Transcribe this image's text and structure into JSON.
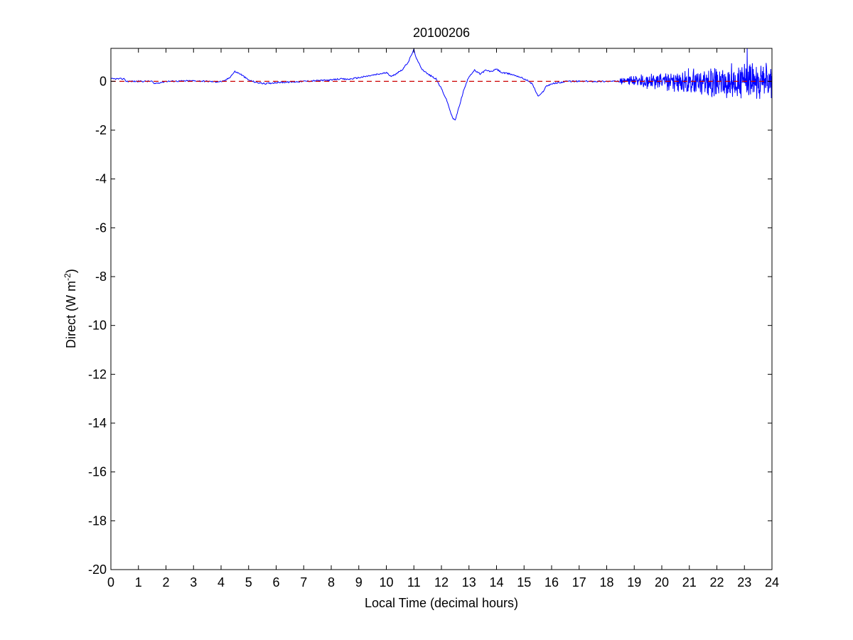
{
  "chart_data": {
    "type": "line",
    "title": "20100206",
    "xlabel": "Local Time (decimal hours)",
    "ylabel": {
      "text": "Direct (W m",
      "superscript": "-2",
      "suffix": ")"
    },
    "xlim": [
      0,
      24
    ],
    "ylim": [
      -20,
      1.35
    ],
    "xticks": [
      0,
      1,
      2,
      3,
      4,
      5,
      6,
      7,
      8,
      9,
      10,
      11,
      12,
      13,
      14,
      15,
      16,
      17,
      18,
      19,
      20,
      21,
      22,
      23,
      24
    ],
    "yticks": [
      0,
      -2,
      -4,
      -6,
      -8,
      -10,
      -12,
      -14,
      -16,
      -18,
      -20
    ],
    "grid": false,
    "colors": {
      "series": "#0000ff",
      "reference": "#cc0000",
      "axes": "#000000"
    },
    "reference_line": {
      "y": 0,
      "style": "dashed"
    },
    "series": [
      {
        "x": [
          0,
          0.5,
          0.55,
          1,
          1.5,
          1.55,
          2,
          3,
          3.5,
          3.8,
          4.1,
          4.3,
          4.5,
          4.7,
          5,
          5.3,
          5.6,
          6,
          6.5,
          7,
          7.5,
          8,
          8.3,
          8.6,
          9,
          9.5,
          10,
          10.2,
          10.4,
          10.6,
          10.8,
          11,
          11.1,
          11.3,
          11.5,
          11.8,
          12,
          12.2,
          12.4,
          12.5,
          12.6,
          12.8,
          13,
          13.2,
          13.4,
          13.6,
          13.8,
          14,
          14.2,
          14.5,
          14.8,
          15.1,
          15.3,
          15.4,
          15.5,
          15.6,
          15.7,
          15.8,
          16,
          16.3,
          16.6,
          17,
          17.5,
          18,
          18.5
        ],
        "y": [
          0.1,
          0.1,
          0,
          0,
          0,
          -0.1,
          0,
          0.02,
          0,
          -0.02,
          0,
          0.15,
          0.4,
          0.3,
          0.05,
          -0.05,
          -0.1,
          -0.05,
          -0.03,
          0,
          0.03,
          0.05,
          0.1,
          0.08,
          0.15,
          0.25,
          0.35,
          0.2,
          0.35,
          0.5,
          0.8,
          1.3,
          0.9,
          0.5,
          0.3,
          0.1,
          -0.3,
          -0.8,
          -1.5,
          -1.6,
          -1.2,
          -0.4,
          0.2,
          0.45,
          0.3,
          0.45,
          0.4,
          0.5,
          0.35,
          0.3,
          0.2,
          0.05,
          -0.1,
          -0.35,
          -0.6,
          -0.55,
          -0.4,
          -0.2,
          -0.1,
          -0.05,
          0,
          0,
          0,
          0,
          0
        ]
      }
    ],
    "noise_segment": {
      "x_start": 18.5,
      "x_end": 24,
      "amplitude_start": 0.12,
      "amplitude_end": 0.95,
      "peak": {
        "x": 23.1,
        "y": 1.35
      },
      "trough": {
        "x": 24,
        "y": -1.3
      }
    }
  }
}
